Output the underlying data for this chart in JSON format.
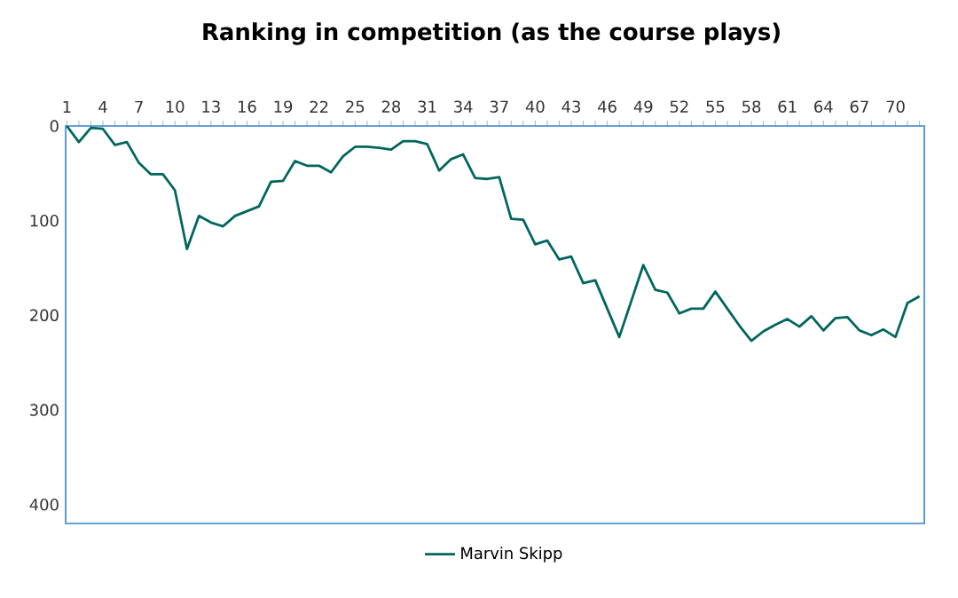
{
  "chart_data": {
    "type": "line",
    "title": "Ranking in competition (as the course plays)",
    "categories": [
      "1",
      null,
      null,
      "4",
      null,
      null,
      "7",
      null,
      null,
      "10",
      null,
      null,
      "13",
      null,
      null,
      "16",
      null,
      null,
      "19",
      null,
      null,
      "22",
      null,
      null,
      "25",
      null,
      null,
      "28",
      null,
      null,
      "31",
      null,
      null,
      "34",
      null,
      null,
      "37",
      null,
      null,
      "40",
      null,
      null,
      "43",
      null,
      null,
      "46",
      null,
      null,
      "49",
      null,
      null,
      "52",
      null,
      null,
      "55",
      null,
      null,
      "58",
      null,
      null,
      "61",
      null,
      null,
      "64",
      null,
      null,
      "67",
      null,
      null,
      "70",
      null,
      null
    ],
    "series": [
      {
        "name": "Marvin Skipp",
        "color": "#00665e",
        "values": [
          0,
          17,
          2,
          3,
          20,
          17,
          39,
          51,
          51,
          68,
          130,
          95,
          102,
          106,
          95,
          90,
          85,
          59,
          58,
          37,
          42,
          42,
          49,
          32,
          22,
          22,
          23,
          25,
          16,
          16,
          19,
          47,
          35,
          30,
          55,
          56,
          54,
          98,
          99,
          125,
          121,
          141,
          138,
          166,
          163,
          193,
          223,
          185,
          147,
          173,
          176,
          198,
          193,
          193,
          175,
          193,
          211,
          227,
          217,
          210,
          204,
          212,
          201,
          216,
          203,
          202,
          216,
          221,
          215,
          223,
          187,
          180
        ]
      }
    ],
    "ylim": [
      420,
      0
    ],
    "yticks": [
      0,
      100,
      200,
      300,
      400
    ],
    "grid": false,
    "legend": "bottom",
    "marker": "none",
    "line_style": "solid"
  }
}
